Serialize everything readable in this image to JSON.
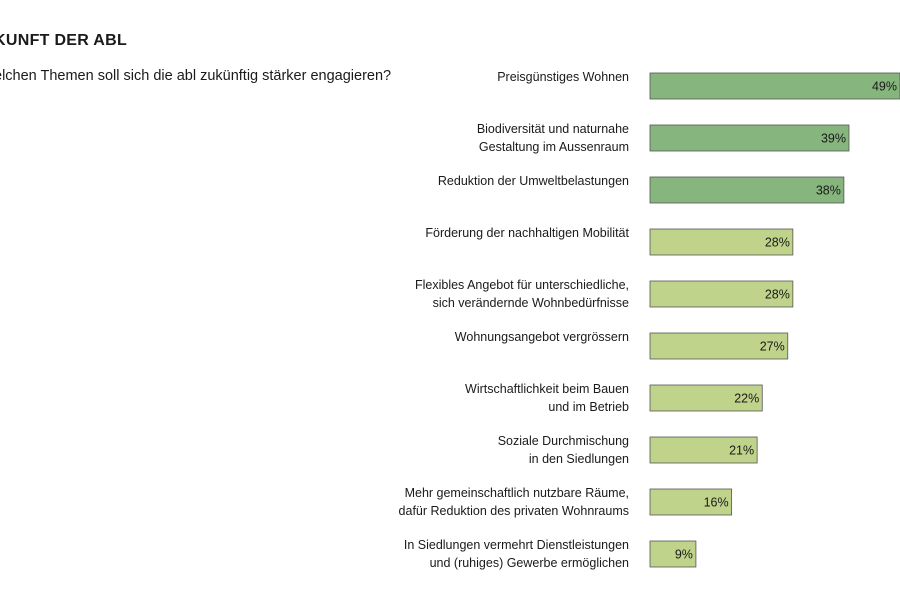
{
  "header": {
    "title": "KUNFT DER ABL",
    "question": "elchen Themen soll sich die abl zukünftig stärker engagieren?"
  },
  "chart_data": {
    "type": "bar",
    "orientation": "horizontal",
    "title": "",
    "xlabel": "",
    "ylabel": "",
    "xlim": [
      0,
      49
    ],
    "grid": false,
    "categories": [
      [
        "Preisgünstiges Wohnen"
      ],
      [
        "Biodiversität und naturnahe",
        "Gestaltung im Aussenraum"
      ],
      [
        "Reduktion der Umweltbelastungen"
      ],
      [
        "Förderung der nachhaltigen Mobilität"
      ],
      [
        "Flexibles Angebot für unterschiedliche,",
        "sich verändernde Wohnbedürfnisse"
      ],
      [
        "Wohnungsangebot vergrössern"
      ],
      [
        "Wirtschaftlichkeit beim Bauen",
        "und im Betrieb"
      ],
      [
        "Soziale Durchmischung",
        "in den Siedlungen"
      ],
      [
        "Mehr gemeinschaftlich nutzbare Räume,",
        "dafür Reduktion des privaten Wohnraums"
      ],
      [
        "In Siedlungen vermehrt Dienstleistungen",
        "und (ruhiges) Gewerbe ermöglichen"
      ]
    ],
    "values": [
      49,
      39,
      38,
      28,
      28,
      27,
      22,
      21,
      16,
      9
    ],
    "value_labels": [
      "49%",
      "39%",
      "38%",
      "28%",
      "28%",
      "27%",
      "22%",
      "21%",
      "16%",
      "9%"
    ],
    "colors": {
      "dark_fill": "#86b57d",
      "light_fill": "#bfd38a",
      "stroke": "#555555"
    },
    "dark_count": 3
  }
}
